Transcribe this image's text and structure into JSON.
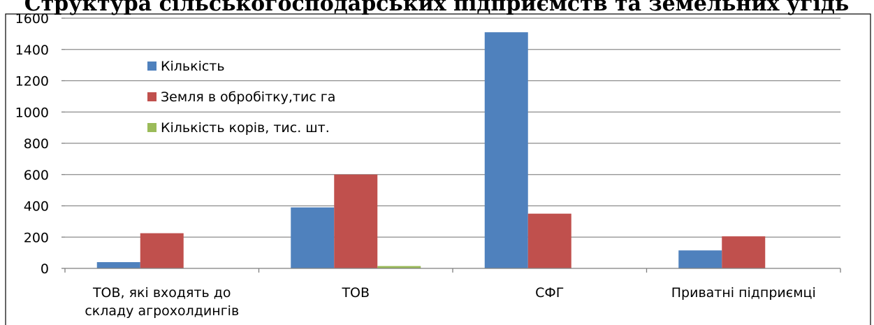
{
  "chart_data": {
    "type": "bar",
    "title": "Структура сільськогосподарських підприємств та земельних угідь",
    "xlabel": "",
    "ylabel": "",
    "ylim": [
      0,
      1600
    ],
    "yticks": [
      0,
      200,
      400,
      600,
      800,
      1000,
      1200,
      1400,
      1600
    ],
    "grid": true,
    "legend_position": "top-left",
    "categories": [
      [
        "ТОВ, які входять до",
        "складу агрохолдингів"
      ],
      [
        "ТОВ"
      ],
      [
        "СФГ"
      ],
      [
        "Приватні підприємці"
      ]
    ],
    "series": [
      {
        "name": "Кількість",
        "color": "#4f81bd",
        "values": [
          40,
          390,
          1510,
          115
        ]
      },
      {
        "name": "Земля в обробітку,тис га",
        "color": "#c0504d",
        "values": [
          225,
          600,
          350,
          205
        ]
      },
      {
        "name": "Кількість корів, тис. шт.",
        "color": "#9bbb59",
        "values": [
          0,
          15,
          0,
          0
        ]
      }
    ]
  }
}
